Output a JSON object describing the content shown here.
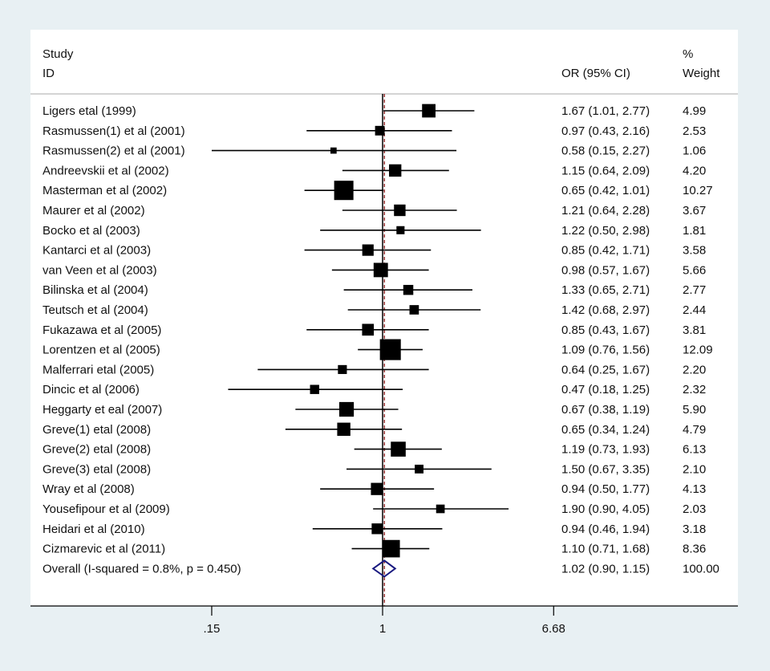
{
  "chart_data": {
    "type": "forest",
    "headers": {
      "study": "Study",
      "id": "ID",
      "or": "OR (95% CI)",
      "pct": "%",
      "weight": "Weight"
    },
    "x_scale": "log",
    "xticks": [
      {
        "value": 0.15,
        "label": ".15"
      },
      {
        "value": 1,
        "label": "1"
      },
      {
        "value": 6.68,
        "label": "6.68"
      }
    ],
    "null_value": 1,
    "studies": [
      {
        "label": "Ligers etal (1999)",
        "or": 1.67,
        "lo": 1.01,
        "hi": 2.77,
        "ci_text": "1.67 (1.01, 2.77)",
        "weight": "4.99"
      },
      {
        "label": "Rasmussen(1) et al (2001)",
        "or": 0.97,
        "lo": 0.43,
        "hi": 2.16,
        "ci_text": "0.97 (0.43, 2.16)",
        "weight": "2.53"
      },
      {
        "label": "Rasmussen(2) et al (2001)",
        "or": 0.58,
        "lo": 0.15,
        "hi": 2.27,
        "ci_text": "0.58 (0.15, 2.27)",
        "weight": "1.06"
      },
      {
        "label": "Andreevskii et al (2002)",
        "or": 1.15,
        "lo": 0.64,
        "hi": 2.09,
        "ci_text": "1.15 (0.64, 2.09)",
        "weight": "4.20"
      },
      {
        "label": "Masterman et al (2002)",
        "or": 0.65,
        "lo": 0.42,
        "hi": 1.01,
        "ci_text": "0.65 (0.42, 1.01)",
        "weight": "10.27"
      },
      {
        "label": "Maurer et al (2002)",
        "or": 1.21,
        "lo": 0.64,
        "hi": 2.28,
        "ci_text": "1.21 (0.64, 2.28)",
        "weight": "3.67"
      },
      {
        "label": "Bocko et al (2003)",
        "or": 1.22,
        "lo": 0.5,
        "hi": 2.98,
        "ci_text": "1.22 (0.50, 2.98)",
        "weight": "1.81"
      },
      {
        "label": "Kantarci et al (2003)",
        "or": 0.85,
        "lo": 0.42,
        "hi": 1.71,
        "ci_text": "0.85 (0.42, 1.71)",
        "weight": "3.58"
      },
      {
        "label": "van Veen et al (2003)",
        "or": 0.98,
        "lo": 0.57,
        "hi": 1.67,
        "ci_text": "0.98 (0.57, 1.67)",
        "weight": "5.66"
      },
      {
        "label": "Bilinska et al (2004)",
        "or": 1.33,
        "lo": 0.65,
        "hi": 2.71,
        "ci_text": "1.33 (0.65, 2.71)",
        "weight": "2.77"
      },
      {
        "label": "Teutsch et al (2004)",
        "or": 1.42,
        "lo": 0.68,
        "hi": 2.97,
        "ci_text": "1.42 (0.68, 2.97)",
        "weight": "2.44"
      },
      {
        "label": "Fukazawa et al (2005)",
        "or": 0.85,
        "lo": 0.43,
        "hi": 1.67,
        "ci_text": "0.85 (0.43, 1.67)",
        "weight": "3.81"
      },
      {
        "label": "Lorentzen et al (2005)",
        "or": 1.09,
        "lo": 0.76,
        "hi": 1.56,
        "ci_text": "1.09 (0.76, 1.56)",
        "weight": "12.09"
      },
      {
        "label": "Malferrari etal  (2005)",
        "or": 0.64,
        "lo": 0.25,
        "hi": 1.67,
        "ci_text": "0.64 (0.25, 1.67)",
        "weight": "2.20"
      },
      {
        "label": "Dincic et al (2006)",
        "or": 0.47,
        "lo": 0.18,
        "hi": 1.25,
        "ci_text": "0.47 (0.18, 1.25)",
        "weight": "2.32"
      },
      {
        "label": "Heggarty et eal (2007)",
        "or": 0.67,
        "lo": 0.38,
        "hi": 1.19,
        "ci_text": "0.67 (0.38, 1.19)",
        "weight": "5.90"
      },
      {
        "label": "Greve(1) etal (2008)",
        "or": 0.65,
        "lo": 0.34,
        "hi": 1.24,
        "ci_text": "0.65 (0.34, 1.24)",
        "weight": "4.79"
      },
      {
        "label": "Greve(2) etal (2008)",
        "or": 1.19,
        "lo": 0.73,
        "hi": 1.93,
        "ci_text": "1.19 (0.73, 1.93)",
        "weight": "6.13"
      },
      {
        "label": "Greve(3) etal (2008)",
        "or": 1.5,
        "lo": 0.67,
        "hi": 3.35,
        "ci_text": "1.50 (0.67, 3.35)",
        "weight": "2.10"
      },
      {
        "label": "Wray et al (2008)",
        "or": 0.94,
        "lo": 0.5,
        "hi": 1.77,
        "ci_text": "0.94 (0.50, 1.77)",
        "weight": "4.13"
      },
      {
        "label": "Yousefipour et al (2009)",
        "or": 1.9,
        "lo": 0.9,
        "hi": 4.05,
        "ci_text": "1.90 (0.90, 4.05)",
        "weight": "2.03"
      },
      {
        "label": "Heidari et al (2010)",
        "or": 0.94,
        "lo": 0.46,
        "hi": 1.94,
        "ci_text": "0.94 (0.46, 1.94)",
        "weight": "3.18"
      },
      {
        "label": "Cizmarevic et al (2011)",
        "or": 1.1,
        "lo": 0.71,
        "hi": 1.68,
        "ci_text": "1.10 (0.71, 1.68)",
        "weight": "8.36"
      }
    ],
    "overall": {
      "label": "Overall  (I-squared = 0.8%, p = 0.450)",
      "or": 1.02,
      "lo": 0.9,
      "hi": 1.15,
      "ci_text": "1.02 (0.90, 1.15)",
      "weight": "100.00"
    },
    "colors": {
      "background": "#e8f0f3",
      "panel": "#ffffff",
      "marker": "#000000",
      "diamond": "#1a1a80",
      "overall_line": "#8b1a1a"
    }
  }
}
